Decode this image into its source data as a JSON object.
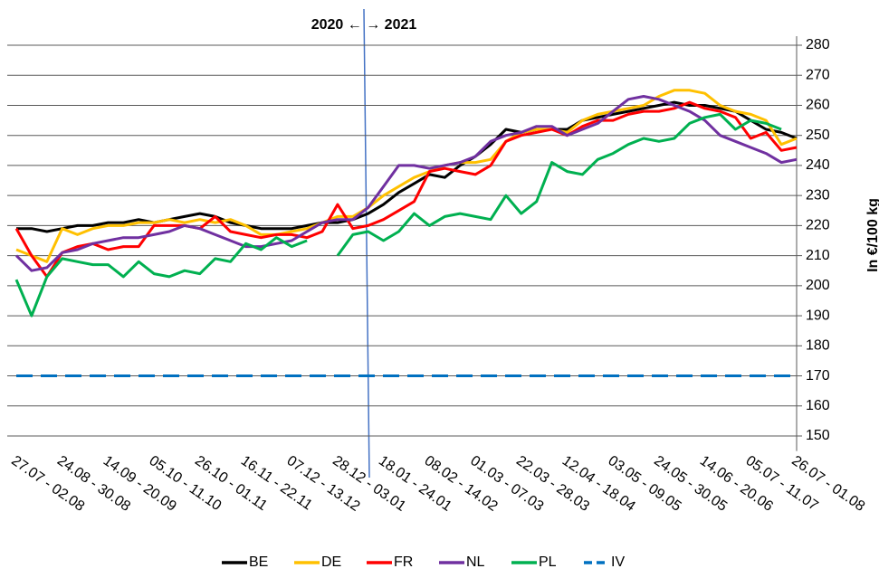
{
  "chart_data": {
    "type": "line",
    "annotation": "2020 ← → 2021",
    "y_label": "In €/100 kg",
    "categories": [
      "27.07 - 02.08",
      null,
      null,
      "24.08 - 30.08",
      null,
      null,
      "14.09 - 20.09",
      null,
      null,
      "05.10 - 11.10",
      null,
      null,
      "26.10 - 01.11",
      null,
      null,
      "16.11 - 22.11",
      null,
      null,
      "07.12 - 13.12",
      null,
      null,
      "28.12 - 03.01",
      null,
      null,
      "18.01 - 24.01",
      null,
      null,
      "08.02 - 14.02",
      null,
      null,
      "01.03 - 07.03",
      null,
      null,
      "22.03 - 28.03",
      null,
      null,
      "12.04 - 18.04",
      null,
      null,
      "03.05 - 09.05",
      null,
      null,
      "24.05 - 30.05",
      null,
      null,
      "14.06 - 20.06",
      null,
      null,
      "05.07 - 11.07",
      null,
      null,
      "26.07 - 01.08"
    ],
    "series": [
      {
        "name": "BE",
        "color": "#000000",
        "dashed": false,
        "values": [
          219,
          219,
          218,
          219,
          220,
          220,
          221,
          221,
          222,
          221,
          222,
          223,
          224,
          223,
          221,
          220,
          219,
          219,
          219,
          220,
          221,
          221,
          222,
          224,
          227,
          231,
          234,
          237,
          236,
          240,
          243,
          247,
          252,
          251,
          252,
          252,
          252,
          255,
          256,
          257,
          258,
          259,
          260,
          261,
          260,
          260,
          259,
          258,
          255,
          252,
          251,
          249
        ]
      },
      {
        "name": "DE",
        "color": "#ffc000",
        "dashed": false,
        "values": [
          212,
          210,
          208,
          219,
          217,
          219,
          220,
          220,
          221,
          221,
          222,
          221,
          222,
          221,
          222,
          220,
          217,
          217,
          218,
          219,
          221,
          223,
          223,
          226,
          230,
          233,
          236,
          238,
          240,
          241,
          241,
          242,
          248,
          251,
          252,
          252,
          251,
          255,
          257,
          258,
          259,
          260,
          263,
          265,
          265,
          264,
          260,
          258,
          257,
          255,
          247,
          249
        ]
      },
      {
        "name": "FR",
        "color": "#ff0000",
        "dashed": false,
        "values": [
          219,
          210,
          203,
          211,
          213,
          214,
          212,
          213,
          213,
          220,
          220,
          220,
          219,
          223,
          218,
          217,
          216,
          217,
          217,
          216,
          218,
          227,
          219,
          220,
          222,
          225,
          228,
          238,
          239,
          238,
          237,
          240,
          248,
          250,
          251,
          252,
          250,
          253,
          255,
          255,
          257,
          258,
          258,
          259,
          261,
          259,
          258,
          256,
          249,
          251,
          245,
          246
        ]
      },
      {
        "name": "NL",
        "color": "#7030a0",
        "dashed": false,
        "values": [
          210,
          205,
          206,
          211,
          212,
          214,
          215,
          216,
          216,
          217,
          218,
          220,
          219,
          217,
          215,
          213,
          213,
          214,
          215,
          218,
          221,
          222,
          222,
          226,
          233,
          240,
          240,
          239,
          240,
          241,
          243,
          248,
          250,
          251,
          253,
          253,
          250,
          252,
          254,
          258,
          262,
          263,
          262,
          260,
          258,
          255,
          250,
          248,
          246,
          244,
          241,
          242
        ]
      },
      {
        "name": "PL",
        "color": "#00b050",
        "dashed": false,
        "values": [
          202,
          190,
          203,
          209,
          208,
          207,
          207,
          203,
          208,
          204,
          203,
          205,
          204,
          209,
          208,
          214,
          212,
          216,
          213,
          215,
          null,
          210,
          217,
          218,
          215,
          218,
          224,
          220,
          223,
          224,
          223,
          222,
          230,
          224,
          228,
          241,
          238,
          237,
          242,
          244,
          247,
          249,
          248,
          249,
          254,
          256,
          257,
          252,
          255,
          254,
          252,
          null
        ]
      },
      {
        "name": "IV",
        "color": "#0070c0",
        "dashed": true,
        "values": [
          170,
          170,
          170,
          170,
          170,
          170,
          170,
          170,
          170,
          170,
          170,
          170,
          170,
          170,
          170,
          170,
          170,
          170,
          170,
          170,
          170,
          170,
          170,
          170,
          170,
          170,
          170,
          170,
          170,
          170,
          170,
          170,
          170,
          170,
          170,
          170,
          170,
          170,
          170,
          170,
          170,
          170,
          170,
          170,
          170,
          170,
          170,
          170,
          170,
          170,
          170,
          170
        ]
      }
    ],
    "ylim": [
      145,
      283
    ],
    "yticks": [
      150,
      160,
      170,
      180,
      190,
      200,
      210,
      220,
      230,
      240,
      250,
      260,
      270,
      280
    ],
    "grid": true
  }
}
